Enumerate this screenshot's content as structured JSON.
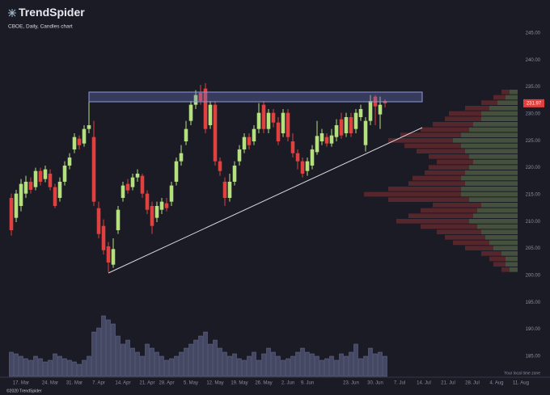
{
  "chart_data": {
    "type": "candlestick",
    "title": "TrendSpider",
    "subtitle": "CBOE, Daily, Candles chart",
    "timezone_note": "Your local time zone",
    "copyright": "©2020 TrendSpider",
    "last_price": 231.97,
    "up_color": "#b4e07e",
    "down_color": "#e0413f",
    "volume_color": "#444862",
    "categories": [
      null,
      null,
      "17. Mar",
      null,
      null,
      null,
      null,
      null,
      "24. Mar",
      null,
      null,
      null,
      null,
      "31. Mar",
      null,
      null,
      null,
      null,
      "7. Apr",
      null,
      null,
      null,
      null,
      "14. Apr",
      null,
      null,
      null,
      null,
      "21. Apr",
      null,
      null,
      null,
      "28. Apr",
      null,
      null,
      null,
      null,
      "5. May",
      null,
      null,
      null,
      null,
      "12. May",
      null,
      null,
      null,
      null,
      "19. May",
      null,
      null,
      null,
      null,
      "26. May",
      null,
      null,
      null,
      null,
      "2. Jun",
      null,
      null,
      null,
      "9. Jun",
      null,
      null,
      null,
      null,
      null,
      null,
      null,
      null,
      "23. Jun",
      null,
      null,
      null,
      null,
      "30. Jun",
      null,
      null,
      null,
      null,
      "7. Jul",
      null,
      null,
      null,
      null,
      "14. Jul",
      null,
      null,
      null,
      null,
      "21. Jul",
      null,
      null,
      null,
      null,
      "28. Jul",
      null,
      null,
      null,
      null,
      "4. Aug",
      null,
      null,
      null,
      null,
      "11. Aug",
      null
    ],
    "open": [
      214.4,
      210.7,
      212.9,
      215.2,
      217.4,
      216.4,
      219.4,
      217.9,
      218.9,
      216.4,
      214.4,
      217.4,
      220.4,
      223.4,
      225.4,
      224.5,
      227.2,
      225.7,
      212.5,
      209.2,
      205.4,
      202.0,
      208.4,
      214.4,
      217.0,
      216.4,
      218.2,
      218.5,
      215.2,
      212.9,
      210.7,
      212.2,
      213.4,
      213.7,
      217.4,
      221.2,
      224.9,
      228.7,
      231.7,
      233.9,
      234.7,
      227.9,
      231.7,
      221.2,
      217.4,
      214.4,
      217.4,
      221.2,
      223.4,
      225.7,
      224.9,
      227.2,
      231.7,
      227.2,
      230.2,
      228.4,
      226.4,
      230.2,
      224.9,
      222.7,
      221.2,
      219.4,
      220.4,
      222.9,
      224.9,
      225.7,
      224.5,
      225.7,
      229.0,
      226.4,
      229.4,
      227.2,
      229.4,
      224.2,
      228.7,
      233.2,
      229.9,
      232.4,
      null,
      null,
      null,
      null,
      null,
      null,
      null,
      null,
      null,
      null,
      null,
      null,
      null,
      null,
      null,
      null,
      null,
      null,
      null,
      null,
      null,
      null,
      null,
      null,
      null,
      null,
      null,
      null,
      null
    ],
    "high": [
      215.2,
      215.9,
      217.9,
      218.5,
      218.2,
      220.0,
      220.0,
      220.4,
      219.7,
      217.0,
      218.2,
      221.2,
      222.7,
      226.4,
      226.0,
      227.9,
      233.5,
      228.7,
      213.7,
      210.4,
      206.2,
      206.9,
      212.9,
      217.4,
      217.9,
      218.9,
      219.7,
      218.9,
      215.8,
      213.7,
      213.7,
      214.4,
      214.4,
      217.4,
      221.9,
      224.2,
      228.7,
      232.4,
      234.4,
      235.4,
      235.7,
      232.4,
      232.4,
      221.9,
      218.2,
      218.9,
      221.2,
      224.2,
      226.4,
      226.4,
      227.9,
      232.0,
      232.4,
      230.9,
      230.9,
      229.4,
      230.9,
      230.9,
      226.4,
      223.4,
      221.9,
      221.9,
      224.2,
      228.7,
      227.2,
      226.4,
      227.2,
      229.0,
      230.2,
      230.2,
      230.2,
      230.9,
      231.7,
      229.4,
      233.5,
      233.5,
      233.2,
      232.7,
      null,
      null,
      null,
      null,
      null,
      null,
      null,
      null,
      null,
      null,
      null,
      null,
      null,
      null,
      null,
      null,
      null,
      null,
      null,
      null,
      null,
      null,
      null,
      null,
      null,
      null,
      null,
      null,
      null
    ],
    "low": [
      207.4,
      209.9,
      211.9,
      214.4,
      215.2,
      215.8,
      216.7,
      217.3,
      215.8,
      212.5,
      213.7,
      216.7,
      219.7,
      222.7,
      223.4,
      223.9,
      226.4,
      212.9,
      206.9,
      203.9,
      200.6,
      201.4,
      207.7,
      213.7,
      215.2,
      215.8,
      217.4,
      214.4,
      211.4,
      207.7,
      209.9,
      211.4,
      211.9,
      212.9,
      216.7,
      220.4,
      224.2,
      227.9,
      230.9,
      231.7,
      226.4,
      227.2,
      220.4,
      218.5,
      212.9,
      213.7,
      216.7,
      220.4,
      222.7,
      223.4,
      224.2,
      226.4,
      226.4,
      226.4,
      227.5,
      224.2,
      225.7,
      224.9,
      221.9,
      219.7,
      218.2,
      218.5,
      219.7,
      222.4,
      224.2,
      223.9,
      223.9,
      224.9,
      225.4,
      225.7,
      225.7,
      226.4,
      228.7,
      223.0,
      227.9,
      227.9,
      227.2,
      231.2,
      null,
      null,
      null,
      null,
      null,
      null,
      null,
      null,
      null,
      null,
      null,
      null,
      null,
      null,
      null,
      null,
      null,
      null,
      null,
      null,
      null,
      null,
      null,
      null,
      null,
      null,
      null,
      null,
      null
    ],
    "close": [
      208.4,
      215.2,
      217.0,
      217.4,
      215.9,
      219.4,
      217.4,
      219.7,
      216.4,
      212.9,
      217.4,
      220.4,
      221.9,
      225.7,
      224.2,
      227.2,
      227.9,
      213.7,
      207.7,
      204.7,
      202.4,
      204.9,
      212.2,
      216.7,
      215.8,
      218.2,
      218.9,
      215.2,
      212.2,
      209.2,
      212.9,
      213.7,
      212.5,
      216.7,
      221.2,
      222.7,
      227.2,
      231.7,
      233.5,
      232.4,
      227.2,
      231.7,
      221.2,
      219.4,
      214.4,
      217.4,
      220.4,
      223.4,
      225.7,
      224.2,
      227.2,
      230.2,
      227.2,
      230.2,
      228.4,
      224.9,
      230.2,
      225.7,
      222.7,
      221.2,
      218.9,
      221.2,
      223.4,
      225.9,
      226.4,
      224.5,
      226.0,
      227.9,
      226.0,
      229.4,
      226.4,
      230.2,
      230.9,
      228.7,
      232.4,
      231.4,
      231.7,
      231.97,
      null,
      null,
      null,
      null,
      null,
      null,
      null,
      null,
      null,
      null,
      null,
      null,
      null,
      null,
      null,
      null,
      null,
      null,
      null,
      null,
      null,
      null,
      null,
      null,
      null,
      null,
      null,
      null,
      null
    ],
    "volume": [
      360000,
      336000,
      300000,
      264000,
      240000,
      300000,
      264000,
      216000,
      240000,
      336000,
      300000,
      264000,
      240000,
      216000,
      180000,
      240000,
      300000,
      660000,
      720000,
      900000,
      840000,
      780000,
      600000,
      480000,
      540000,
      420000,
      360000,
      300000,
      480000,
      420000,
      360000,
      300000,
      240000,
      264000,
      300000,
      360000,
      420000,
      480000,
      540000,
      600000,
      660000,
      480000,
      540000,
      420000,
      360000,
      300000,
      336000,
      264000,
      240000,
      300000,
      360000,
      240000,
      336000,
      420000,
      360000,
      300000,
      240000,
      264000,
      300000,
      360000,
      420000,
      360000,
      336000,
      300000,
      240000,
      264000,
      300000,
      240000,
      336000,
      300000,
      360000,
      480000,
      264000,
      300000,
      420000,
      336000,
      360000,
      300000,
      null,
      null,
      null,
      null,
      null,
      null,
      null,
      null,
      null,
      null,
      null,
      null,
      null,
      null,
      null,
      null,
      null,
      null,
      null,
      null,
      null,
      null,
      null,
      null,
      null,
      null,
      null,
      null,
      null
    ],
    "volume_profile": {
      "prices": [
        201,
        202,
        203,
        204,
        205,
        206,
        207,
        208,
        209,
        210,
        211,
        212,
        213,
        214,
        215,
        216,
        217,
        218,
        219,
        220,
        221,
        222,
        223,
        224,
        225,
        226,
        227,
        228,
        229,
        230,
        231,
        232,
        233,
        234
      ],
      "down": [
        10,
        15,
        20,
        25,
        35,
        45,
        50,
        55,
        70,
        90,
        80,
        70,
        60,
        100,
        120,
        90,
        70,
        60,
        50,
        50,
        45,
        50,
        60,
        70,
        80,
        75,
        60,
        50,
        45,
        40,
        30,
        20,
        15,
        10
      ],
      "up": [
        10,
        15,
        15,
        20,
        30,
        35,
        40,
        45,
        50,
        60,
        55,
        50,
        45,
        60,
        70,
        70,
        65,
        70,
        65,
        60,
        55,
        60,
        65,
        70,
        80,
        70,
        60,
        55,
        45,
        45,
        35,
        25,
        15,
        10
      ]
    },
    "ylim": [
      181.1,
      247.55
    ],
    "yticks": [
      {
        "value": 185,
        "label": "185.00"
      },
      {
        "value": 190,
        "label": "190.00"
      },
      {
        "value": 195,
        "label": "195.00"
      },
      {
        "value": 200,
        "label": "200.00"
      },
      {
        "value": 205,
        "label": "205.00"
      },
      {
        "value": 210,
        "label": "210.00"
      },
      {
        "value": 215,
        "label": "215.00"
      },
      {
        "value": 220,
        "label": "220.00"
      },
      {
        "value": 225,
        "label": "225.00"
      },
      {
        "value": 230,
        "label": "230.00"
      },
      {
        "value": 235,
        "label": "235.00"
      },
      {
        "value": 240,
        "label": "240.00"
      },
      {
        "value": 245,
        "label": "245.00"
      }
    ],
    "grid": false
  }
}
